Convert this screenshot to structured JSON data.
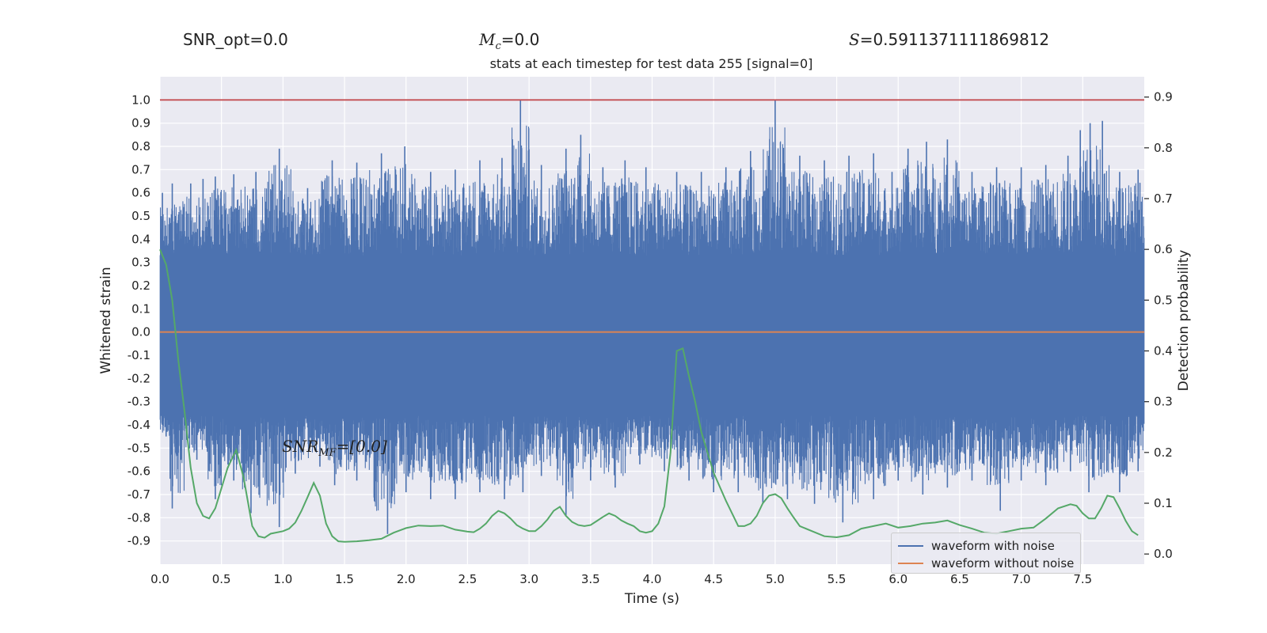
{
  "header": {
    "snr_opt": "SNR_opt=0.0",
    "mc_symbol": "M",
    "mc_sub": "c",
    "mc_value": "=0.0",
    "s_symbol": "S",
    "s_value": "=0.5911371111869812"
  },
  "annotation": {
    "snr_mf_symbol": "SNR",
    "snr_mf_sub": "MF",
    "snr_mf_value": "=[0.0]"
  },
  "colors": {
    "axes_bg": "#eaeaf2",
    "grid": "#ffffff",
    "noisy_waveform": "#4c72b0",
    "clean_waveform": "#dd8452",
    "detection_probability": "#55a868",
    "threshold_line": "#c44e52"
  },
  "chart_data": {
    "type": "line",
    "title": "stats at each timestep for test data 255 [signal=0]",
    "xlabel": "Time (s)",
    "ylabel": "Whitened strain",
    "y2label": "Detection probability",
    "xlim": [
      0.0,
      8.0
    ],
    "ylim": [
      -1.0,
      1.1
    ],
    "y2lim": [
      -0.02,
      0.94
    ],
    "x_ticks": [
      "0.0",
      "0.5",
      "1.0",
      "1.5",
      "2.0",
      "2.5",
      "3.0",
      "3.5",
      "4.0",
      "4.5",
      "5.0",
      "5.5",
      "6.0",
      "6.5",
      "7.0",
      "7.5"
    ],
    "y_ticks": [
      "1.0",
      "0.9",
      "0.8",
      "0.7",
      "0.6",
      "0.5",
      "0.4",
      "0.3",
      "0.2",
      "0.1",
      "0.0",
      "-0.1",
      "-0.2",
      "-0.3",
      "-0.4",
      "-0.5",
      "-0.6",
      "-0.7",
      "-0.8",
      "-0.9"
    ],
    "y2_ticks": [
      "0.9",
      "0.8",
      "0.7",
      "0.6",
      "0.5",
      "0.4",
      "0.3",
      "0.2",
      "0.1",
      "0.0"
    ],
    "grid": true,
    "legend_position": "bottom-right",
    "threshold": 1.0,
    "series": [
      {
        "name": "waveform with noise",
        "axis": "left",
        "description": "dense noisy strain filling the plot",
        "upper_peaks": [
          [
            0.02,
            0.6
          ],
          [
            0.1,
            0.64
          ],
          [
            0.25,
            0.64
          ],
          [
            0.35,
            0.66
          ],
          [
            0.45,
            0.67
          ],
          [
            0.6,
            0.68
          ],
          [
            0.78,
            0.69
          ],
          [
            0.97,
            0.79
          ],
          [
            1.2,
            0.62
          ],
          [
            1.4,
            0.74
          ],
          [
            1.6,
            0.73
          ],
          [
            1.8,
            0.77
          ],
          [
            1.99,
            0.8
          ],
          [
            2.2,
            0.69
          ],
          [
            2.4,
            0.7
          ],
          [
            2.6,
            0.74
          ],
          [
            2.78,
            0.75
          ],
          [
            2.93,
            1.0
          ],
          [
            3.1,
            0.72
          ],
          [
            3.3,
            0.79
          ],
          [
            3.42,
            0.85
          ],
          [
            3.6,
            0.71
          ],
          [
            3.78,
            0.74
          ],
          [
            3.95,
            0.71
          ],
          [
            4.2,
            0.69
          ],
          [
            4.4,
            0.69
          ],
          [
            4.6,
            0.71
          ],
          [
            4.8,
            0.78
          ],
          [
            5.0,
            1.0
          ],
          [
            5.2,
            0.76
          ],
          [
            5.4,
            0.74
          ],
          [
            5.6,
            0.76
          ],
          [
            5.8,
            0.77
          ],
          [
            5.95,
            0.69
          ],
          [
            6.08,
            0.79
          ],
          [
            6.23,
            0.82
          ],
          [
            6.4,
            0.83
          ],
          [
            6.6,
            0.69
          ],
          [
            6.8,
            0.71
          ],
          [
            7.0,
            0.71
          ],
          [
            7.2,
            0.72
          ],
          [
            7.38,
            0.76
          ],
          [
            7.48,
            0.87
          ],
          [
            7.56,
            0.9
          ],
          [
            7.66,
            0.91
          ],
          [
            7.8,
            0.69
          ],
          [
            7.95,
            0.7
          ]
        ],
        "lower_peaks": [
          [
            0.05,
            -0.45
          ],
          [
            0.1,
            -0.76
          ],
          [
            0.3,
            -0.55
          ],
          [
            0.45,
            -0.72
          ],
          [
            0.6,
            -0.64
          ],
          [
            0.74,
            -0.78
          ],
          [
            0.97,
            -0.84
          ],
          [
            1.1,
            -0.61
          ],
          [
            1.3,
            -0.58
          ],
          [
            1.42,
            -0.66
          ],
          [
            1.6,
            -0.64
          ],
          [
            1.85,
            -0.87
          ],
          [
            2.0,
            -0.69
          ],
          [
            2.2,
            -0.72
          ],
          [
            2.4,
            -0.72
          ],
          [
            2.6,
            -0.69
          ],
          [
            2.8,
            -0.72
          ],
          [
            2.95,
            -0.69
          ],
          [
            3.1,
            -0.62
          ],
          [
            3.3,
            -0.79
          ],
          [
            3.5,
            -0.64
          ],
          [
            3.7,
            -0.67
          ],
          [
            3.9,
            -0.57
          ],
          [
            4.1,
            -0.6
          ],
          [
            4.3,
            -0.64
          ],
          [
            4.5,
            -0.69
          ],
          [
            4.7,
            -0.69
          ],
          [
            4.9,
            -0.74
          ],
          [
            5.1,
            -0.72
          ],
          [
            5.32,
            -0.74
          ],
          [
            5.55,
            -0.82
          ],
          [
            5.8,
            -0.72
          ],
          [
            6.0,
            -0.64
          ],
          [
            6.2,
            -0.7
          ],
          [
            6.4,
            -0.67
          ],
          [
            6.6,
            -0.64
          ],
          [
            6.83,
            -0.77
          ],
          [
            7.0,
            -0.64
          ],
          [
            7.2,
            -0.66
          ],
          [
            7.4,
            -0.6
          ],
          [
            7.55,
            -0.69
          ],
          [
            7.8,
            -0.69
          ],
          [
            7.95,
            -0.6
          ]
        ]
      },
      {
        "name": "waveform without noise",
        "axis": "left",
        "x": [
          0.0,
          8.0
        ],
        "y": [
          0.0,
          0.0
        ]
      },
      {
        "name": "",
        "axis": "right",
        "x": [
          0.0,
          0.05,
          0.1,
          0.15,
          0.2,
          0.25,
          0.3,
          0.35,
          0.4,
          0.45,
          0.5,
          0.55,
          0.62,
          0.68,
          0.75,
          0.8,
          0.85,
          0.9,
          1.0,
          1.05,
          1.1,
          1.15,
          1.2,
          1.25,
          1.3,
          1.35,
          1.4,
          1.45,
          1.5,
          1.6,
          1.7,
          1.8,
          1.9,
          2.0,
          2.1,
          2.2,
          2.3,
          2.4,
          2.5,
          2.55,
          2.6,
          2.65,
          2.7,
          2.75,
          2.8,
          2.85,
          2.9,
          2.95,
          3.0,
          3.05,
          3.1,
          3.15,
          3.2,
          3.25,
          3.3,
          3.35,
          3.4,
          3.45,
          3.5,
          3.55,
          3.6,
          3.65,
          3.7,
          3.75,
          3.8,
          3.85,
          3.9,
          3.95,
          4.0,
          4.05,
          4.1,
          4.15,
          4.2,
          4.25,
          4.3,
          4.35,
          4.4,
          4.45,
          4.5,
          4.6,
          4.7,
          4.75,
          4.8,
          4.85,
          4.9,
          4.95,
          5.0,
          5.05,
          5.1,
          5.15,
          5.2,
          5.3,
          5.4,
          5.5,
          5.6,
          5.7,
          5.8,
          5.9,
          6.0,
          6.1,
          6.2,
          6.3,
          6.4,
          6.5,
          6.6,
          6.7,
          6.8,
          6.9,
          7.0,
          7.1,
          7.2,
          7.3,
          7.4,
          7.45,
          7.5,
          7.55,
          7.6,
          7.65,
          7.7,
          7.75,
          7.8,
          7.85,
          7.9,
          7.95
        ],
        "y": [
          0.6,
          0.57,
          0.5,
          0.38,
          0.28,
          0.17,
          0.1,
          0.075,
          0.07,
          0.09,
          0.13,
          0.17,
          0.205,
          0.15,
          0.055,
          0.035,
          0.032,
          0.04,
          0.045,
          0.05,
          0.062,
          0.085,
          0.112,
          0.14,
          0.115,
          0.06,
          0.035,
          0.025,
          0.024,
          0.025,
          0.027,
          0.03,
          0.042,
          0.051,
          0.056,
          0.055,
          0.056,
          0.048,
          0.044,
          0.043,
          0.05,
          0.06,
          0.075,
          0.085,
          0.08,
          0.07,
          0.057,
          0.05,
          0.045,
          0.045,
          0.055,
          0.068,
          0.085,
          0.093,
          0.075,
          0.063,
          0.057,
          0.055,
          0.057,
          0.065,
          0.073,
          0.08,
          0.075,
          0.066,
          0.06,
          0.055,
          0.045,
          0.042,
          0.045,
          0.06,
          0.094,
          0.2,
          0.4,
          0.405,
          0.35,
          0.3,
          0.24,
          0.2,
          0.16,
          0.105,
          0.055,
          0.055,
          0.06,
          0.075,
          0.1,
          0.115,
          0.118,
          0.11,
          0.09,
          0.072,
          0.055,
          0.045,
          0.035,
          0.033,
          0.037,
          0.05,
          0.055,
          0.06,
          0.052,
          0.055,
          0.06,
          0.062,
          0.066,
          0.057,
          0.05,
          0.042,
          0.04,
          0.045,
          0.05,
          0.052,
          0.07,
          0.09,
          0.098,
          0.095,
          0.08,
          0.07,
          0.07,
          0.09,
          0.115,
          0.112,
          0.09,
          0.065,
          0.045,
          0.037
        ]
      }
    ]
  },
  "legend": {
    "items": [
      {
        "label": "waveform with noise"
      },
      {
        "label": "waveform without noise"
      }
    ]
  }
}
